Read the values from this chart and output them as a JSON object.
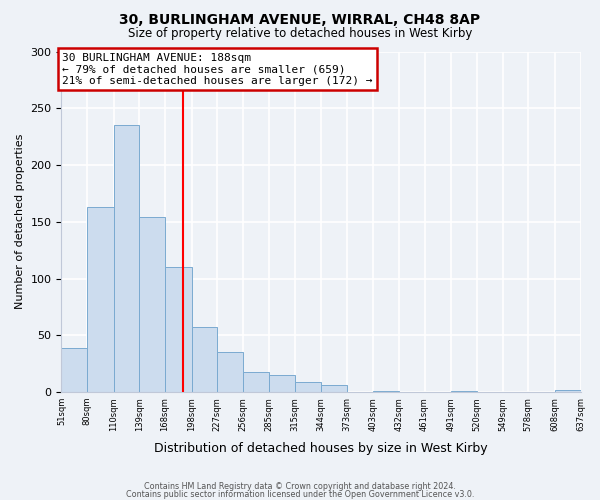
{
  "title": "30, BURLINGHAM AVENUE, WIRRAL, CH48 8AP",
  "subtitle": "Size of property relative to detached houses in West Kirby",
  "xlabel": "Distribution of detached houses by size in West Kirby",
  "ylabel": "Number of detached properties",
  "bar_edges": [
    51,
    80,
    110,
    139,
    168,
    198,
    227,
    256,
    285,
    315,
    344,
    373,
    403,
    432,
    461,
    491,
    520,
    549,
    578,
    608,
    637
  ],
  "bar_heights": [
    39,
    163,
    235,
    154,
    110,
    57,
    35,
    18,
    15,
    9,
    6,
    0,
    1,
    0,
    0,
    1,
    0,
    0,
    0,
    2
  ],
  "bar_color": "#ccdcee",
  "bar_edgecolor": "#7aaad0",
  "reference_line_x": 188,
  "annotation_line1": "30 BURLINGHAM AVENUE: 188sqm",
  "annotation_line2": "← 79% of detached houses are smaller (659)",
  "annotation_line3": "21% of semi-detached houses are larger (172) →",
  "annotation_box_facecolor": "#ffffff",
  "annotation_box_edgecolor": "#cc0000",
  "ylim": [
    0,
    300
  ],
  "yticks": [
    0,
    50,
    100,
    150,
    200,
    250,
    300
  ],
  "footer_line1": "Contains HM Land Registry data © Crown copyright and database right 2024.",
  "footer_line2": "Contains public sector information licensed under the Open Government Licence v3.0.",
  "tick_labels": [
    "51sqm",
    "80sqm",
    "110sqm",
    "139sqm",
    "168sqm",
    "198sqm",
    "227sqm",
    "256sqm",
    "285sqm",
    "315sqm",
    "344sqm",
    "373sqm",
    "403sqm",
    "432sqm",
    "461sqm",
    "491sqm",
    "520sqm",
    "549sqm",
    "578sqm",
    "608sqm",
    "637sqm"
  ],
  "background_color": "#eef2f7",
  "grid_color": "#ffffff",
  "spine_color": "#c0c8d8"
}
